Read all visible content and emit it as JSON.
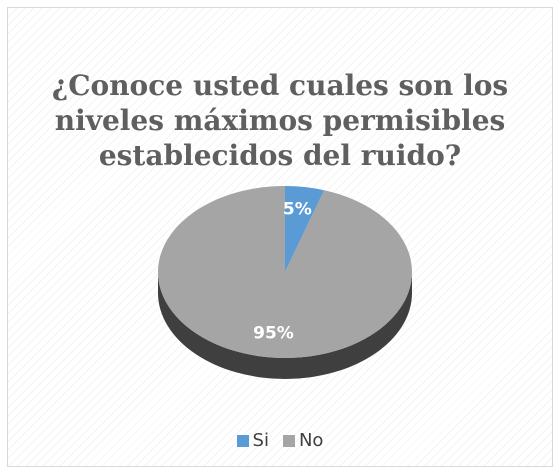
{
  "chart_data": {
    "type": "pie",
    "title_lines": [
      "¿Conoce usted cuales son los",
      "niveles máximos permisibles",
      "establecidos del ruido?"
    ],
    "categories": [
      "Si",
      "No"
    ],
    "values": [
      5,
      95
    ],
    "data_labels": [
      "5%",
      "95%"
    ],
    "colors": {
      "Si": "#5b9bd5",
      "No": "#a5a5a5"
    },
    "legend_position": "bottom"
  }
}
